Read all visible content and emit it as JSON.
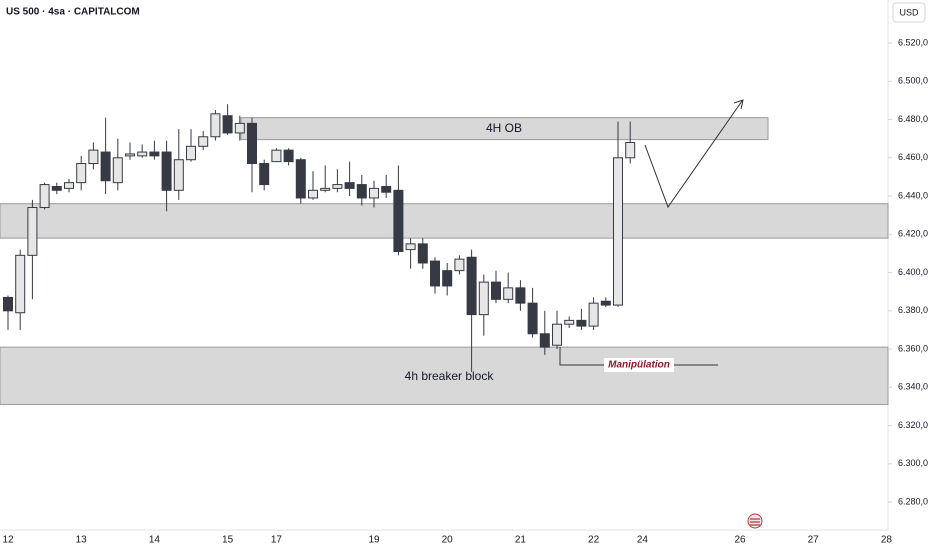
{
  "chart_data": {
    "type": "candlestick",
    "title": "US 500 · 4sa · CAPITALCOM",
    "currency": "USD",
    "categories": [
      "12",
      null,
      null,
      null,
      null,
      null,
      "13",
      null,
      null,
      null,
      null,
      null,
      "14",
      null,
      null,
      null,
      null,
      null,
      "15",
      null,
      null,
      null,
      "17",
      null,
      null,
      null,
      null,
      null,
      null,
      null,
      "19",
      null,
      null,
      null,
      null,
      null,
      "20",
      null,
      null,
      null,
      null,
      null,
      "21",
      null,
      null,
      null,
      null,
      null,
      "22",
      null,
      null,
      null,
      "24",
      null,
      null,
      null,
      null,
      null,
      null,
      null,
      "26",
      null,
      null,
      null,
      null,
      null,
      "27",
      null,
      null,
      null,
      null,
      null,
      "28"
    ],
    "open": [
      6387,
      6379,
      6409,
      6434,
      6445,
      6444,
      6447,
      6457,
      6463,
      6447,
      6461,
      6461,
      6463,
      6463,
      6443,
      6459,
      6466,
      6471,
      6482,
      6473,
      6478,
      6457,
      6458,
      6464,
      6459,
      6439,
      6443,
      6444,
      6447,
      6446,
      6439,
      6445,
      6443,
      6412,
      6415,
      6406,
      6401,
      6401,
      6408,
      6378,
      6395,
      6386,
      6392,
      6384,
      6368,
      6362,
      6373,
      6375,
      6372,
      6385,
      6383,
      6460,
      null,
      null,
      null,
      null,
      null,
      null,
      null,
      null,
      null,
      null,
      null,
      null,
      null,
      null,
      null,
      null,
      null,
      null,
      null,
      null,
      null
    ],
    "high": [
      6388,
      6412,
      6438,
      6447,
      6447,
      6449,
      6461,
      6468,
      6481,
      6470,
      6468,
      6467,
      6469,
      6469,
      6475,
      6475,
      6474,
      6485,
      6488,
      6482,
      6481,
      6459,
      6465,
      6465,
      6460,
      6453,
      6456,
      6454,
      6458,
      6451,
      6448,
      6451,
      6456,
      6418,
      6418,
      6408,
      6405,
      6409,
      6412,
      6399,
      6401,
      6400,
      6396,
      6392,
      6380,
      6380,
      6377,
      6381,
      6387,
      6387,
      6479,
      6479,
      null,
      null,
      null,
      null,
      null,
      null,
      null,
      null,
      null,
      null,
      null,
      null,
      null,
      null,
      null,
      null,
      null,
      null,
      null,
      null,
      null
    ],
    "low": [
      6370,
      6370,
      6386,
      6433,
      6441,
      6442,
      6443,
      6454,
      6441,
      6443,
      6459,
      6460,
      6459,
      6432,
      6438,
      6458,
      6464,
      6469,
      6472,
      6469,
      6442,
      6443,
      6458,
      6456,
      6436,
      6438,
      6442,
      6442,
      6440,
      6435,
      6434,
      6439,
      6409,
      6402,
      6402,
      6389,
      6388,
      6399,
      6348,
      6367,
      6384,
      6384,
      6380,
      6366,
      6357,
      6360,
      6371,
      6370,
      6370,
      6382,
      6382,
      6457,
      null,
      null,
      null,
      null,
      null,
      null,
      null,
      null,
      null,
      null,
      null,
      null,
      null,
      null,
      null,
      null,
      null,
      null,
      null,
      null,
      null
    ],
    "close": [
      6380,
      6409,
      6434,
      6446,
      6443,
      6447,
      6457,
      6464,
      6448,
      6460,
      6462,
      6463,
      6461,
      6443,
      6459,
      6466,
      6471,
      6483,
      6473,
      6478,
      6457,
      6446,
      6464,
      6458,
      6439,
      6443,
      6444,
      6446,
      6444,
      6439,
      6444,
      6442,
      6411,
      6415,
      6405,
      6393,
      6393,
      6407,
      6378,
      6395,
      6386,
      6392,
      6384,
      6368,
      6361,
      6373,
      6375,
      6372,
      6384,
      6383,
      6460,
      6468,
      null,
      null,
      null,
      null,
      null,
      null,
      null,
      null,
      null,
      null,
      null,
      null,
      null,
      null,
      null,
      null,
      null,
      null,
      null,
      null,
      null
    ],
    "up_color": "#e6e6e6",
    "down_color": "#363a45",
    "ylim": [
      6265.4,
      6542.5
    ],
    "yticks": [
      {
        "value": 6520,
        "label": "6.520,0"
      },
      {
        "value": 6500,
        "label": "6.500,0"
      },
      {
        "value": 6480,
        "label": "6.480,0"
      },
      {
        "value": 6460,
        "label": "6.460,0"
      },
      {
        "value": 6440,
        "label": "6.440,0"
      },
      {
        "value": 6420,
        "label": "6.420,0"
      },
      {
        "value": 6400,
        "label": "6.400,0"
      },
      {
        "value": 6380,
        "label": "6.380,0"
      },
      {
        "value": 6360,
        "label": "6.360,0"
      },
      {
        "value": 6340,
        "label": "6.340,0"
      },
      {
        "value": 6320,
        "label": "6.320,0"
      },
      {
        "value": 6300,
        "label": "6.300,0"
      },
      {
        "value": 6280,
        "label": "6.280,0"
      }
    ],
    "zones": [
      {
        "label": "4H OB",
        "range": [
          6469.5,
          6481
        ]
      },
      {
        "range": [
          6418,
          6436
        ]
      },
      {
        "label": "4h breaker block",
        "range": [
          6331,
          6361
        ]
      }
    ],
    "annotation": "Manipülation"
  }
}
